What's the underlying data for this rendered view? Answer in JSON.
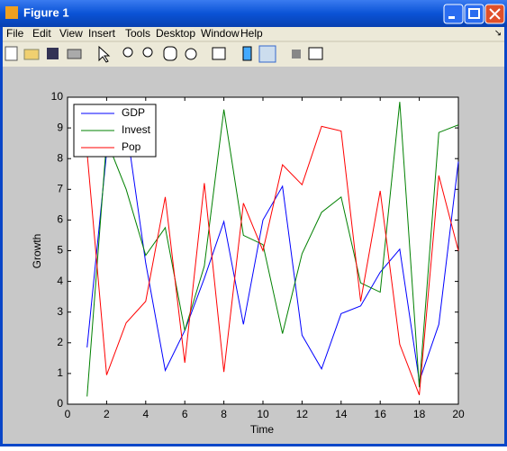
{
  "window": {
    "title": "Figure 1",
    "menu": [
      "File",
      "Edit",
      "View",
      "Insert",
      "Tools",
      "Desktop",
      "Window",
      "Help"
    ]
  },
  "chart_data": {
    "type": "line",
    "xlabel": "Time",
    "ylabel": "Growth",
    "x": [
      1,
      2,
      3,
      4,
      5,
      6,
      7,
      8,
      9,
      10,
      11,
      12,
      13,
      14,
      15,
      16,
      17,
      18,
      19,
      20
    ],
    "series": [
      {
        "name": "GDP",
        "color": "#0000ff",
        "values": [
          1.85,
          8.2,
          9.1,
          4.6,
          1.1,
          2.4,
          4.1,
          5.95,
          2.6,
          6.0,
          7.1,
          2.25,
          1.15,
          2.95,
          3.2,
          4.3,
          5.05,
          0.75,
          2.6,
          7.9
        ]
      },
      {
        "name": "Invest",
        "color": "#008000",
        "values": [
          0.25,
          8.6,
          7.0,
          4.85,
          5.75,
          2.4,
          4.5,
          9.6,
          5.5,
          5.2,
          2.3,
          4.9,
          6.25,
          6.75,
          3.95,
          3.65,
          9.85,
          0.55,
          8.85,
          9.1
        ]
      },
      {
        "name": "Pop",
        "color": "#ff0000",
        "values": [
          8.2,
          0.95,
          2.65,
          3.35,
          6.75,
          1.35,
          7.2,
          1.05,
          6.55,
          5.0,
          7.8,
          7.15,
          9.05,
          8.9,
          3.35,
          6.95,
          1.95,
          0.3,
          7.45,
          5.0
        ]
      }
    ],
    "xlim": [
      0,
      20
    ],
    "xticks": [
      0,
      2,
      4,
      6,
      8,
      10,
      12,
      14,
      16,
      18,
      20
    ],
    "ylim": [
      0,
      10
    ],
    "yticks": [
      0,
      1,
      2,
      3,
      4,
      5,
      6,
      7,
      8,
      9,
      10
    ],
    "legend": "top-left",
    "grid": false
  }
}
